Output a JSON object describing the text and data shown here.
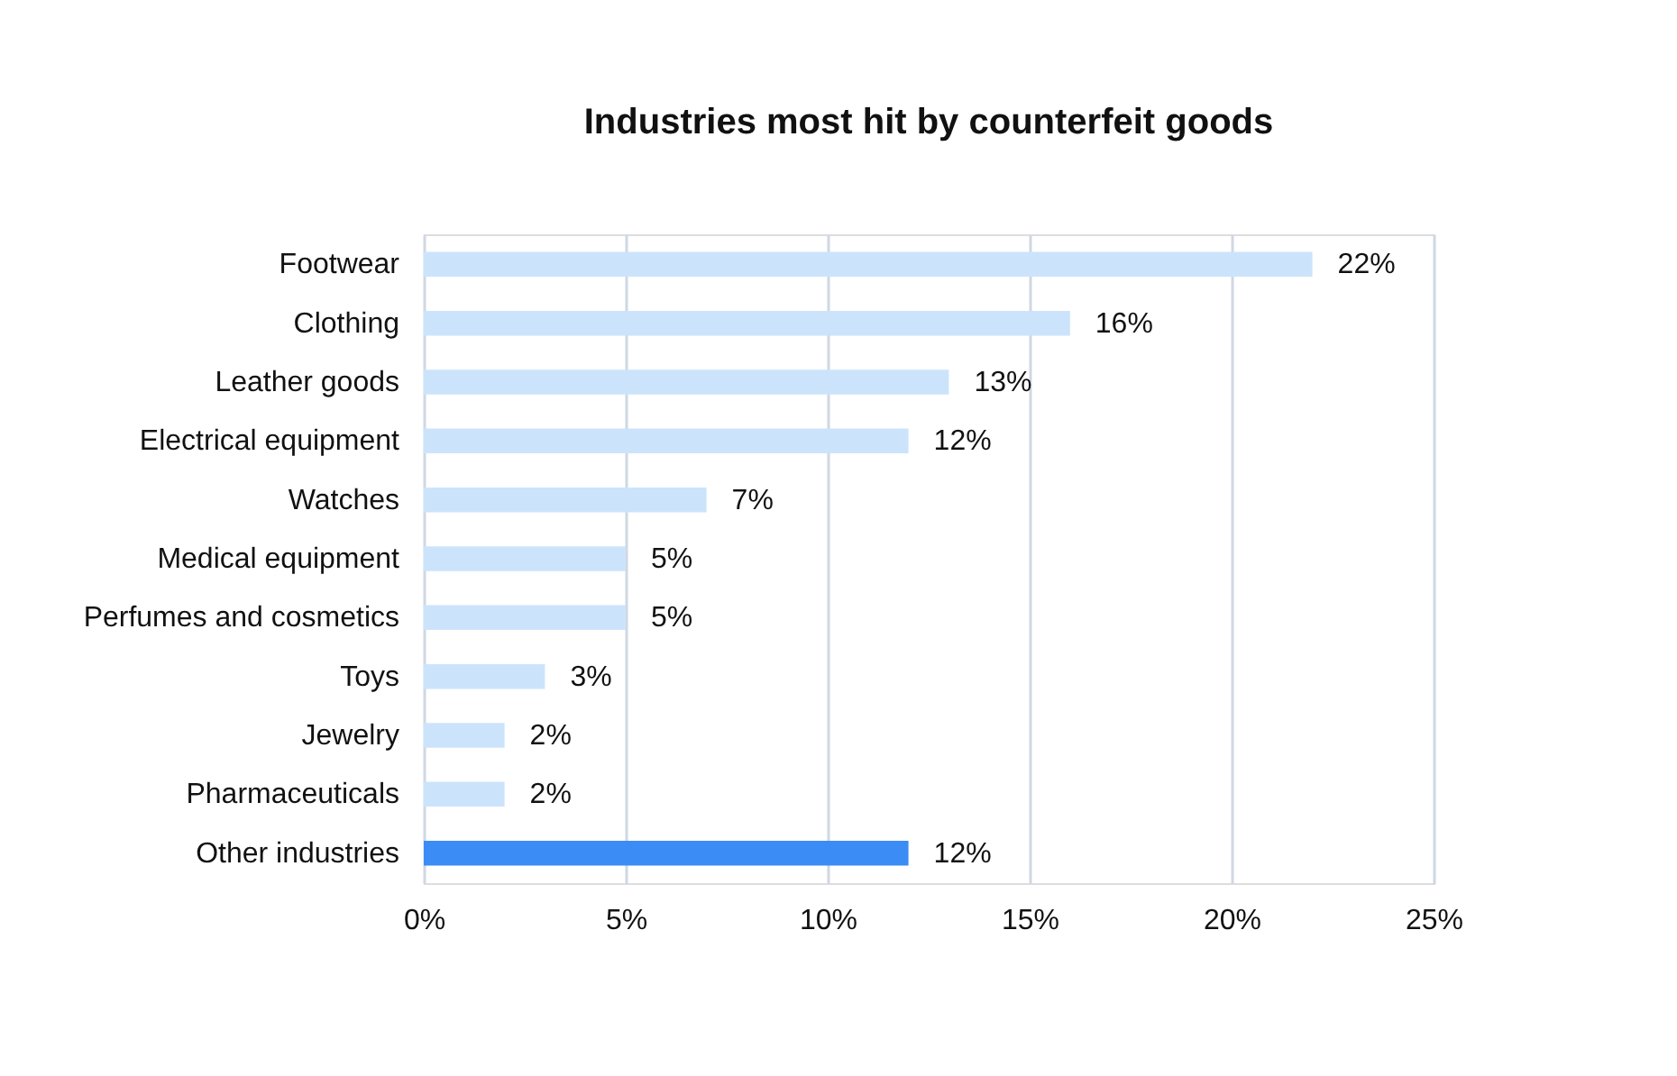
{
  "chart_data": {
    "type": "bar",
    "orientation": "horizontal",
    "title": "Industries most hit by counterfeit goods",
    "categories": [
      "Footwear",
      "Clothing",
      "Leather goods",
      "Electrical equipment",
      "Watches",
      "Medical equipment",
      "Perfumes and cosmetics",
      "Toys",
      "Jewelry",
      "Pharmaceuticals",
      "Other industries"
    ],
    "values": [
      22,
      16,
      13,
      12,
      7,
      5,
      5,
      3,
      2,
      2,
      12
    ],
    "value_labels": [
      "22%",
      "16%",
      "13%",
      "12%",
      "7%",
      "5%",
      "5%",
      "3%",
      "2%",
      "2%",
      "12%"
    ],
    "colors": [
      "#cce4fb",
      "#cce4fb",
      "#cce4fb",
      "#cce4fb",
      "#cce4fb",
      "#cce4fb",
      "#cce4fb",
      "#cce4fb",
      "#cce4fb",
      "#cce4fb",
      "#3b8cf5"
    ],
    "xlim": [
      0,
      25
    ],
    "xticks": [
      {
        "value": 0,
        "label": "0%"
      },
      {
        "value": 5,
        "label": "5%"
      },
      {
        "value": 10,
        "label": "10%"
      },
      {
        "value": 15,
        "label": "15%"
      },
      {
        "value": 20,
        "label": "20%"
      },
      {
        "value": 25,
        "label": "25%"
      }
    ],
    "grid": "x"
  }
}
